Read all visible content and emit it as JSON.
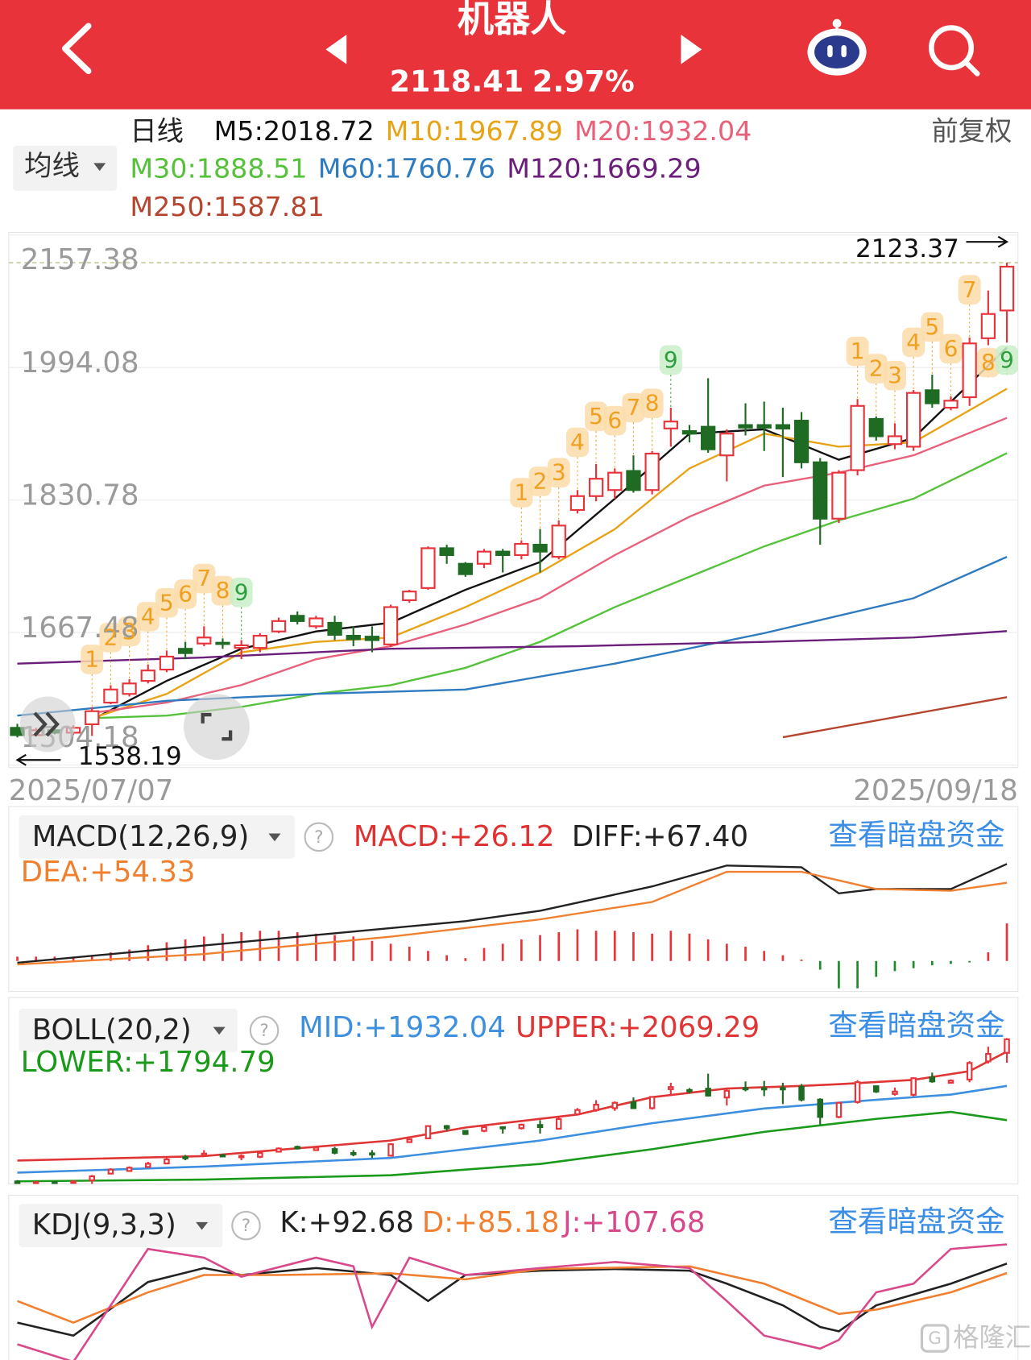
{
  "header": {
    "title": "机器人",
    "price": 2118.41,
    "change": "2.97%"
  },
  "watermark": "格隆汇",
  "chart_data": [
    {
      "type": "candlestick",
      "period": "日线",
      "adjust": "前复权",
      "indicator": "均线",
      "up_color": "#e8333a",
      "down_color": "#1f6b23",
      "td_color": "#f0a020",
      "td_bg": "#fcdcaa",
      "td_final_color": "#2e9e3e",
      "td_final_bg": "#c9efc9",
      "open": [
        1550,
        1541,
        1547,
        1544,
        1554.4,
        1581.1,
        1591.8,
        1607.9,
        1621.8,
        1647.4,
        1653.9,
        1654.9,
        1648.5,
        1648.5,
        1668.8,
        1688.1,
        1675.2,
        1679.5,
        1663.5,
        1662.4,
        1652.8,
        1707.3,
        1722.3,
        1771.4,
        1752.2,
        1752.2,
        1767.2,
        1762.9,
        1775.7,
        1760.8,
        1818.5,
        1835.6,
        1843.1,
        1866.6,
        1843.1,
        1919.0,
        1915.8,
        1921.1,
        1885.8,
        1923.2,
        1923.2,
        1923.2,
        1928.6,
        1877.3,
        1807.8,
        1867.6,
        1930.7,
        1899.7,
        1896.5,
        1966.1,
        1944.6,
        1957.5,
        2030.2,
        2064.4
      ],
      "high": [
        1555,
        1550,
        1552,
        1553,
        1575.5,
        1602.5,
        1610.0,
        1628.2,
        1645.3,
        1656.0,
        1675.2,
        1660.2,
        1658.1,
        1666.7,
        1685.9,
        1693.4,
        1688.1,
        1688.1,
        1675.2,
        1675.2,
        1701.9,
        1720.1,
        1773.6,
        1775.7,
        1754.3,
        1770.4,
        1770.4,
        1781.1,
        1795.0,
        1805.7,
        1843.1,
        1875.1,
        1869.8,
        1885.8,
        1891.1,
        1944.6,
        1923.3,
        1981.0,
        1917.9,
        1950.0,
        1952.1,
        1944.6,
        1939.3,
        1882.6,
        1867.6,
        1955.3,
        1933.9,
        1925.4,
        1966.3,
        1985.3,
        1958.5,
        2031.1,
        2089.0,
        2123.37
      ],
      "low": [
        1538.19,
        1540,
        1542,
        1541,
        1540,
        1579.0,
        1588.6,
        1604.7,
        1618.6,
        1634.6,
        1650.6,
        1647.4,
        1634.6,
        1643.1,
        1666.7,
        1677.4,
        1672.0,
        1658.1,
        1650.6,
        1643.1,
        1649.6,
        1704.1,
        1720.1,
        1752.2,
        1736.2,
        1746.9,
        1741.5,
        1757.6,
        1741.5,
        1757.6,
        1814.2,
        1829.2,
        1832.4,
        1839.9,
        1837.7,
        1896.5,
        1901.8,
        1889.0,
        1853.8,
        1910.4,
        1891.2,
        1859.1,
        1869.8,
        1775.7,
        1802.5,
        1861.2,
        1904.0,
        1893.3,
        1891.2,
        1944.6,
        1941.4,
        1946.8,
        2021.6,
        2024.8
      ],
      "close": [
        1541,
        1547,
        1544,
        1550,
        1570.5,
        1597.2,
        1604.7,
        1620.7,
        1637.8,
        1642.1,
        1661.3,
        1653.9,
        1651.7,
        1663.5,
        1681.6,
        1681.6,
        1684.9,
        1664.6,
        1659.2,
        1658.1,
        1698.8,
        1718.0,
        1771.4,
        1762.9,
        1739.4,
        1767.2,
        1762.9,
        1776.8,
        1767.2,
        1799.3,
        1835.6,
        1857.0,
        1864.5,
        1843.1,
        1888.0,
        1927.5,
        1912.6,
        1893.3,
        1912.6,
        1920.0,
        1920.0,
        1918.9,
        1877.3,
        1807.8,
        1864.5,
        1946.8,
        1909.4,
        1909.4,
        1962.8,
        1950.0,
        1953.2,
        2023.8,
        2060.1,
        2118.41
      ],
      "td": [
        null,
        null,
        null,
        null,
        1,
        2,
        3,
        4,
        5,
        6,
        7,
        8,
        9,
        null,
        null,
        null,
        null,
        null,
        null,
        null,
        null,
        null,
        null,
        null,
        null,
        null,
        null,
        1,
        2,
        3,
        4,
        5,
        6,
        7,
        8,
        9,
        null,
        null,
        null,
        null,
        null,
        null,
        null,
        null,
        null,
        1,
        2,
        3,
        4,
        5,
        6,
        7,
        8,
        9
      ],
      "series": [
        {
          "name": "M5:2018.72",
          "color": "#111111",
          "x": [
            4,
            8,
            12,
            16,
            20,
            24,
            28,
            32,
            36,
            40,
            44,
            48,
            53
          ],
          "values": [
            1559.8,
            1607.9,
            1647.4,
            1668.8,
            1679.5,
            1720.1,
            1754.3,
            1832.4,
            1912.6,
            1917.9,
            1880.5,
            1907.2,
            2018.72
          ]
        },
        {
          "name": "M10:1967.89",
          "color": "#e8a317",
          "x": [
            4,
            8,
            12,
            16,
            20,
            24,
            28,
            32,
            36,
            40,
            44,
            48,
            53
          ],
          "values": [
            1561.9,
            1591.8,
            1643.1,
            1656.0,
            1661.3,
            1698.8,
            1741.5,
            1794.9,
            1869.8,
            1912.6,
            1896.5,
            1901.8,
            1967.89
          ]
        },
        {
          "name": "M20:1932.04",
          "color": "#e8607a",
          "x": [
            4,
            8,
            12,
            16,
            20,
            24,
            28,
            32,
            36,
            40,
            44,
            48,
            53
          ],
          "values": [
            1568.3,
            1581.1,
            1602.8,
            1634.6,
            1650.6,
            1677.4,
            1709.8,
            1762.9,
            1810.3,
            1848.5,
            1864.5,
            1885.8,
            1932.04
          ]
        },
        {
          "name": "M30:1888.51",
          "color": "#56c23c",
          "x": [
            4,
            8,
            12,
            16,
            20,
            24,
            28,
            32,
            36,
            40,
            44,
            48,
            53
          ],
          "values": [
            1561.9,
            1565.1,
            1575.8,
            1591.8,
            1602.5,
            1623.9,
            1656.0,
            1698.8,
            1736.2,
            1773.6,
            1805.7,
            1832.4,
            1888.51
          ]
        },
        {
          "name": "M60:1760.76",
          "color": "#2e7bbf",
          "x": [
            0,
            8,
            16,
            24,
            32,
            40,
            48,
            53
          ],
          "values": [
            1565.1,
            1583.3,
            1591.8,
            1597.2,
            1629.2,
            1666.7,
            1709.8,
            1760.76
          ]
        },
        {
          "name": "M120:1669.29",
          "color": "#6b1f7b",
          "x": [
            0,
            10,
            20,
            30,
            40,
            48,
            53
          ],
          "values": [
            1629.2,
            1636.7,
            1647.4,
            1650.6,
            1656.0,
            1661.3,
            1669.29
          ]
        },
        {
          "name": "M250:1587.81",
          "color": "#b5452f",
          "x": [
            41,
            53
          ],
          "values": [
            1538.4,
            1587.81
          ]
        }
      ],
      "ylim": [
        1504.18,
        2157.38
      ],
      "yticks": [
        1504.18,
        1667.48,
        1830.78,
        1994.08,
        2157.38
      ],
      "grid": true,
      "x_labels": [
        "2025/07/07",
        "2025/09/18"
      ]
    },
    {
      "type": "macd",
      "title": "MACD(12,26,9)",
      "link": "查看暗盘资金",
      "histogram": {
        "name": "MACD:+26.12",
        "up_color": "#e8333a",
        "down_color": "#1e8a2e",
        "values": [
          3,
          3,
          3,
          3,
          4,
          6,
          8,
          11,
          13,
          15,
          17,
          19,
          20,
          21,
          21,
          20,
          19,
          18,
          17,
          14,
          12,
          10,
          7,
          4,
          2,
          9,
          12,
          15,
          18,
          20,
          22,
          21,
          21,
          20,
          19,
          21,
          19,
          15,
          12,
          10,
          7,
          4,
          1,
          -6,
          -19,
          -19,
          -11,
          -7,
          -5,
          -3,
          -2,
          -1,
          6,
          26.12
        ]
      },
      "series": [
        {
          "name": "DIFF:+67.40",
          "color": "#222222",
          "x": [
            0,
            10,
            20,
            24,
            28,
            34,
            38,
            42,
            44,
            46,
            50,
            53
          ],
          "values": [
            -1.2,
            10.8,
            22.9,
            27.7,
            34.9,
            51.8,
            66.3,
            65.1,
            47.0,
            50.0,
            50.0,
            67.4
          ]
        },
        {
          "name": "DEA:+54.33",
          "color": "#f08030",
          "x": [
            0,
            10,
            20,
            28,
            34,
            38,
            42,
            46,
            50,
            53
          ],
          "values": [
            -2.4,
            4.8,
            16.9,
            28.9,
            41.0,
            62.0,
            62.0,
            50.0,
            48.8,
            54.33
          ]
        }
      ],
      "ylim": [
        -22.3,
        74.1
      ]
    },
    {
      "type": "boll",
      "title": "BOLL(20,2)",
      "link": "查看暗盘资金",
      "series": [
        {
          "name": "MID:+1932.04",
          "color": "#3d8fe0",
          "x": [
            0,
            10,
            20,
            28,
            34,
            40,
            46,
            50,
            53
          ],
          "values": [
            1585.0,
            1609.3,
            1644.0,
            1713.4,
            1782.8,
            1841.8,
            1876.5,
            1897.3,
            1932.04
          ]
        },
        {
          "name": "UPPER:+2069.29",
          "color": "#e03535",
          "x": [
            0,
            10,
            20,
            24,
            30,
            34,
            38,
            42,
            44,
            48,
            51,
            53
          ],
          "values": [
            1633.6,
            1651.4,
            1713.4,
            1765.5,
            1817.5,
            1886.9,
            1921.6,
            1932.0,
            1939.0,
            1956.3,
            1991.0,
            2069.29
          ]
        },
        {
          "name": "LOWER:+1794.79",
          "color": "#1a9a1a",
          "x": [
            0,
            10,
            20,
            28,
            34,
            40,
            46,
            50,
            53
          ],
          "values": [
            1550.3,
            1557.3,
            1574.6,
            1619.7,
            1678.7,
            1748.1,
            1800.2,
            1827.9,
            1794.79
          ]
        }
      ],
      "ylim": [
        1539.9,
        2129.8
      ]
    },
    {
      "type": "kdj",
      "title": "KDJ(9,3,3)",
      "link": "查看暗盘资金",
      "series": [
        {
          "name": "K:+92.68",
          "color": "#222222",
          "x": [
            0,
            3,
            7,
            10,
            12,
            16,
            20,
            22,
            24,
            28,
            32,
            36,
            38,
            41,
            43,
            44,
            46,
            50,
            53
          ],
          "values": [
            46.3,
            36.1,
            78.2,
            89.1,
            83.7,
            89.1,
            83.7,
            63.3,
            83.7,
            87.1,
            88.4,
            87.1,
            76.9,
            59.9,
            42.9,
            39.5,
            59.9,
            76.9,
            92.68
          ]
        },
        {
          "name": "D:+85.18",
          "color": "#f08030",
          "x": [
            0,
            3,
            7,
            10,
            14,
            20,
            24,
            28,
            36,
            40,
            44,
            46,
            50,
            53
          ],
          "values": [
            63.3,
            46.3,
            70.1,
            83.7,
            83.7,
            85.0,
            80.3,
            88.4,
            90.5,
            76.9,
            53.1,
            56.5,
            70.1,
            85.18
          ]
        },
        {
          "name": "J:+107.68",
          "color": "#d8488a",
          "x": [
            0,
            3,
            7,
            10,
            12,
            16,
            18,
            19,
            21,
            24,
            28,
            32,
            36,
            38,
            40,
            43,
            44,
            46,
            48,
            50,
            53
          ],
          "values": [
            29.3,
            15.6,
            104.1,
            97.3,
            82.3,
            97.3,
            90.5,
            42.9,
            97.3,
            83.7,
            89.1,
            93.9,
            89.1,
            63.3,
            36.1,
            25.9,
            32.7,
            70.1,
            76.9,
            104.1,
            107.68
          ]
        }
      ],
      "ylim": [
        17,
        110.9
      ]
    }
  ]
}
